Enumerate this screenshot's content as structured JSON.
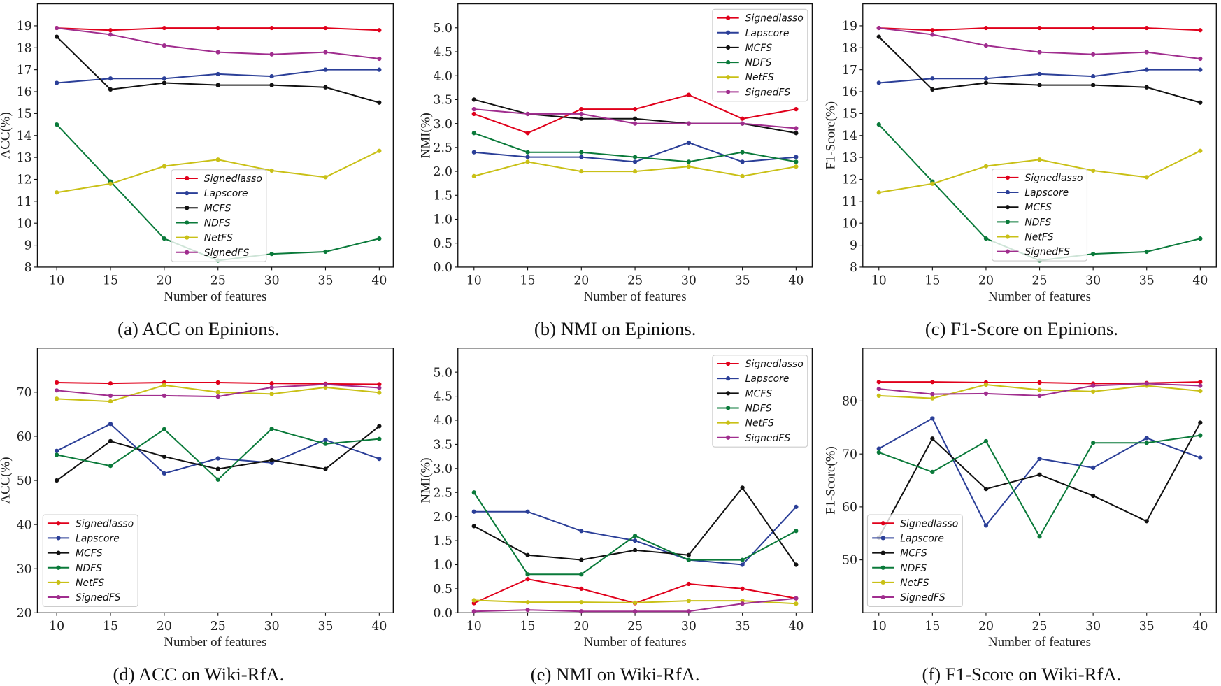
{
  "chart_data": [
    {
      "type": "line",
      "caption": "(a) ACC on Epinions.",
      "xlabel": "Number of features",
      "ylabel": "ACC(%)",
      "x": [
        10,
        15,
        20,
        25,
        30,
        35,
        40
      ],
      "xlim": [
        8.2,
        41.3
      ],
      "ylim": [
        8,
        20
      ],
      "yticks": [
        8,
        9,
        10,
        11,
        12,
        13,
        14,
        15,
        16,
        17,
        18,
        19
      ],
      "ytick_labels": [
        "8",
        "9",
        "10",
        "11",
        "12",
        "13",
        "14",
        "15",
        "16",
        "17",
        "18",
        "19"
      ],
      "grid": false,
      "legend": "lower-center",
      "series": [
        {
          "name": "Signedlasso",
          "color": "#e0001b",
          "values": [
            18.9,
            18.8,
            18.9,
            18.9,
            18.9,
            18.9,
            18.8
          ]
        },
        {
          "name": "Lapscore",
          "color": "#2b3f98",
          "values": [
            16.4,
            16.6,
            16.6,
            16.8,
            16.7,
            17.0,
            17.0
          ]
        },
        {
          "name": "MCFS",
          "color": "#111111",
          "values": [
            18.5,
            16.1,
            16.4,
            16.3,
            16.3,
            16.2,
            15.5
          ]
        },
        {
          "name": "NDFS",
          "color": "#0a7a3a",
          "values": [
            14.5,
            11.9,
            9.3,
            8.3,
            8.6,
            8.7,
            9.3
          ]
        },
        {
          "name": "NetFS",
          "color": "#c9c016",
          "values": [
            11.4,
            11.8,
            12.6,
            12.9,
            12.4,
            12.1,
            13.3
          ]
        },
        {
          "name": "SignedFS",
          "color": "#a02d8e",
          "values": [
            18.9,
            18.6,
            18.1,
            17.8,
            17.7,
            17.8,
            17.5
          ]
        }
      ]
    },
    {
      "type": "line",
      "caption": "(b) NMI on Epinions.",
      "xlabel": "Number of features",
      "ylabel": "NMI(%)",
      "x": [
        10,
        15,
        20,
        25,
        30,
        35,
        40
      ],
      "xlim": [
        8.5,
        41.5
      ],
      "ylim": [
        0,
        5.5
      ],
      "yticks": [
        0,
        0.5,
        1,
        1.5,
        2,
        2.5,
        3,
        3.5,
        4,
        4.5,
        5
      ],
      "ytick_labels": [
        "0.0",
        "0.5",
        "1.0",
        "1.5",
        "2.0",
        "2.5",
        "3.0",
        "3.5",
        "4.0",
        "4.5",
        "5.0"
      ],
      "grid": false,
      "legend": "upper-right",
      "series": [
        {
          "name": "Signedlasso",
          "color": "#e0001b",
          "values": [
            3.2,
            2.8,
            3.3,
            3.3,
            3.6,
            3.1,
            3.3
          ]
        },
        {
          "name": "Lapscore",
          "color": "#2b3f98",
          "values": [
            2.4,
            2.3,
            2.3,
            2.2,
            2.6,
            2.2,
            2.3
          ]
        },
        {
          "name": "MCFS",
          "color": "#111111",
          "values": [
            3.5,
            3.2,
            3.1,
            3.1,
            3.0,
            3.0,
            2.8
          ]
        },
        {
          "name": "NDFS",
          "color": "#0a7a3a",
          "values": [
            2.8,
            2.4,
            2.4,
            2.3,
            2.2,
            2.4,
            2.2
          ]
        },
        {
          "name": "NetFS",
          "color": "#c9c016",
          "values": [
            1.9,
            2.2,
            2.0,
            2.0,
            2.1,
            1.9,
            2.1
          ]
        },
        {
          "name": "SignedFS",
          "color": "#a02d8e",
          "values": [
            3.3,
            3.2,
            3.2,
            3.0,
            3.0,
            3.0,
            2.9
          ]
        }
      ]
    },
    {
      "type": "line",
      "caption": "(c) F1-Score on Epinions.",
      "xlabel": "Number of features",
      "ylabel": "F1-Score(%)",
      "x": [
        10,
        15,
        20,
        25,
        30,
        35,
        40
      ],
      "xlim": [
        8.5,
        41.5
      ],
      "ylim": [
        8,
        20
      ],
      "yticks": [
        8,
        9,
        10,
        11,
        12,
        13,
        14,
        15,
        16,
        17,
        18,
        19
      ],
      "ytick_labels": [
        "8",
        "9",
        "10",
        "11",
        "12",
        "13",
        "14",
        "15",
        "16",
        "17",
        "18",
        "19"
      ],
      "grid": false,
      "legend": "lower-center",
      "series": [
        {
          "name": "Signedlasso",
          "color": "#e0001b",
          "values": [
            18.9,
            18.8,
            18.9,
            18.9,
            18.9,
            18.9,
            18.8
          ]
        },
        {
          "name": "Lapscore",
          "color": "#2b3f98",
          "values": [
            16.4,
            16.6,
            16.6,
            16.8,
            16.7,
            17.0,
            17.0
          ]
        },
        {
          "name": "MCFS",
          "color": "#111111",
          "values": [
            18.5,
            16.1,
            16.4,
            16.3,
            16.3,
            16.2,
            15.5
          ]
        },
        {
          "name": "NDFS",
          "color": "#0a7a3a",
          "values": [
            14.5,
            11.9,
            9.3,
            8.3,
            8.6,
            8.7,
            9.3
          ]
        },
        {
          "name": "NetFS",
          "color": "#c9c016",
          "values": [
            11.4,
            11.8,
            12.6,
            12.9,
            12.4,
            12.1,
            13.3
          ]
        },
        {
          "name": "SignedFS",
          "color": "#a02d8e",
          "values": [
            18.9,
            18.6,
            18.1,
            17.8,
            17.7,
            17.8,
            17.5
          ]
        }
      ]
    },
    {
      "type": "line",
      "caption": "(d) ACC on Wiki-RfA.",
      "xlabel": "Number of features",
      "ylabel": "ACC(%)",
      "x": [
        10,
        15,
        20,
        25,
        30,
        35,
        40
      ],
      "xlim": [
        8.2,
        41.3
      ],
      "ylim": [
        20,
        80
      ],
      "yticks": [
        20,
        30,
        40,
        50,
        60,
        70
      ],
      "ytick_labels": [
        "20",
        "30",
        "40",
        "50",
        "60",
        "70"
      ],
      "grid": false,
      "legend": "lower-left",
      "series": [
        {
          "name": "Signedlasso",
          "color": "#e0001b",
          "values": [
            72.2,
            72.0,
            72.2,
            72.2,
            72.0,
            71.9,
            71.8
          ]
        },
        {
          "name": "Lapscore",
          "color": "#2b3f98",
          "values": [
            56.7,
            62.8,
            51.6,
            55.0,
            54.0,
            59.2,
            54.9
          ]
        },
        {
          "name": "MCFS",
          "color": "#111111",
          "values": [
            50.0,
            58.9,
            55.4,
            52.6,
            54.6,
            52.6,
            62.3
          ]
        },
        {
          "name": "NDFS",
          "color": "#0a7a3a",
          "values": [
            55.8,
            53.3,
            61.6,
            50.2,
            61.7,
            58.3,
            59.4
          ]
        },
        {
          "name": "NetFS",
          "color": "#c9c016",
          "values": [
            68.5,
            67.9,
            71.6,
            70.0,
            69.6,
            71.1,
            69.9
          ]
        },
        {
          "name": "SignedFS",
          "color": "#a02d8e",
          "values": [
            70.4,
            69.2,
            69.2,
            69.0,
            71.1,
            71.8,
            71.0
          ]
        }
      ]
    },
    {
      "type": "line",
      "caption": "(e) NMI on Wiki-RfA.",
      "xlabel": "Number of features",
      "ylabel": "NMI(%)",
      "x": [
        10,
        15,
        20,
        25,
        30,
        35,
        40
      ],
      "xlim": [
        8.5,
        41.5
      ],
      "ylim": [
        0,
        5.5
      ],
      "yticks": [
        0,
        0.5,
        1,
        1.5,
        2,
        2.5,
        3,
        3.5,
        4,
        4.5,
        5
      ],
      "ytick_labels": [
        "0.0",
        "0.5",
        "1.0",
        "1.5",
        "2.0",
        "2.5",
        "3.0",
        "3.5",
        "4.0",
        "4.5",
        "5.0"
      ],
      "grid": false,
      "legend": "upper-right",
      "series": [
        {
          "name": "Signedlasso",
          "color": "#e0001b",
          "values": [
            0.2,
            0.7,
            0.5,
            0.2,
            0.6,
            0.5,
            0.3
          ]
        },
        {
          "name": "Lapscore",
          "color": "#2b3f98",
          "values": [
            2.1,
            2.1,
            1.7,
            1.5,
            1.1,
            1.0,
            2.2
          ]
        },
        {
          "name": "MCFS",
          "color": "#111111",
          "values": [
            1.8,
            1.2,
            1.1,
            1.3,
            1.2,
            2.6,
            1.0
          ]
        },
        {
          "name": "NDFS",
          "color": "#0a7a3a",
          "values": [
            2.5,
            0.8,
            0.8,
            1.6,
            1.1,
            1.1,
            1.7
          ]
        },
        {
          "name": "NetFS",
          "color": "#c9c016",
          "values": [
            0.26,
            0.22,
            0.22,
            0.21,
            0.25,
            0.25,
            0.19
          ]
        },
        {
          "name": "SignedFS",
          "color": "#a02d8e",
          "values": [
            0.03,
            0.06,
            0.03,
            0.03,
            0.03,
            0.19,
            0.3
          ]
        }
      ]
    },
    {
      "type": "line",
      "caption": "(f) F1-Score on Wiki-RfA.",
      "xlabel": "Number of features",
      "ylabel": "F1-Score(%)",
      "x": [
        10,
        15,
        20,
        25,
        30,
        35,
        40
      ],
      "xlim": [
        8.5,
        41.5
      ],
      "ylim": [
        40,
        90
      ],
      "yticks": [
        50,
        60,
        70,
        80
      ],
      "ytick_labels": [
        "50",
        "60",
        "70",
        "80"
      ],
      "grid": false,
      "legend": "lower-left",
      "series": [
        {
          "name": "Signedlasso",
          "color": "#e0001b",
          "values": [
            83.6,
            83.6,
            83.5,
            83.5,
            83.3,
            83.4,
            83.6
          ]
        },
        {
          "name": "Lapscore",
          "color": "#2b3f98",
          "values": [
            71.0,
            76.7,
            56.5,
            69.1,
            67.4,
            73.0,
            69.3
          ]
        },
        {
          "name": "MCFS",
          "color": "#111111",
          "values": [
            54.2,
            72.9,
            63.4,
            66.1,
            62.1,
            57.3,
            75.9
          ]
        },
        {
          "name": "NDFS",
          "color": "#0a7a3a",
          "values": [
            70.3,
            66.6,
            72.4,
            54.4,
            72.1,
            72.1,
            73.5
          ]
        },
        {
          "name": "NetFS",
          "color": "#c9c016",
          "values": [
            81.0,
            80.5,
            83.1,
            82.1,
            81.8,
            82.9,
            81.9
          ]
        },
        {
          "name": "SignedFS",
          "color": "#a02d8e",
          "values": [
            82.3,
            81.3,
            81.4,
            81.0,
            82.9,
            83.3,
            82.9
          ]
        }
      ]
    }
  ]
}
